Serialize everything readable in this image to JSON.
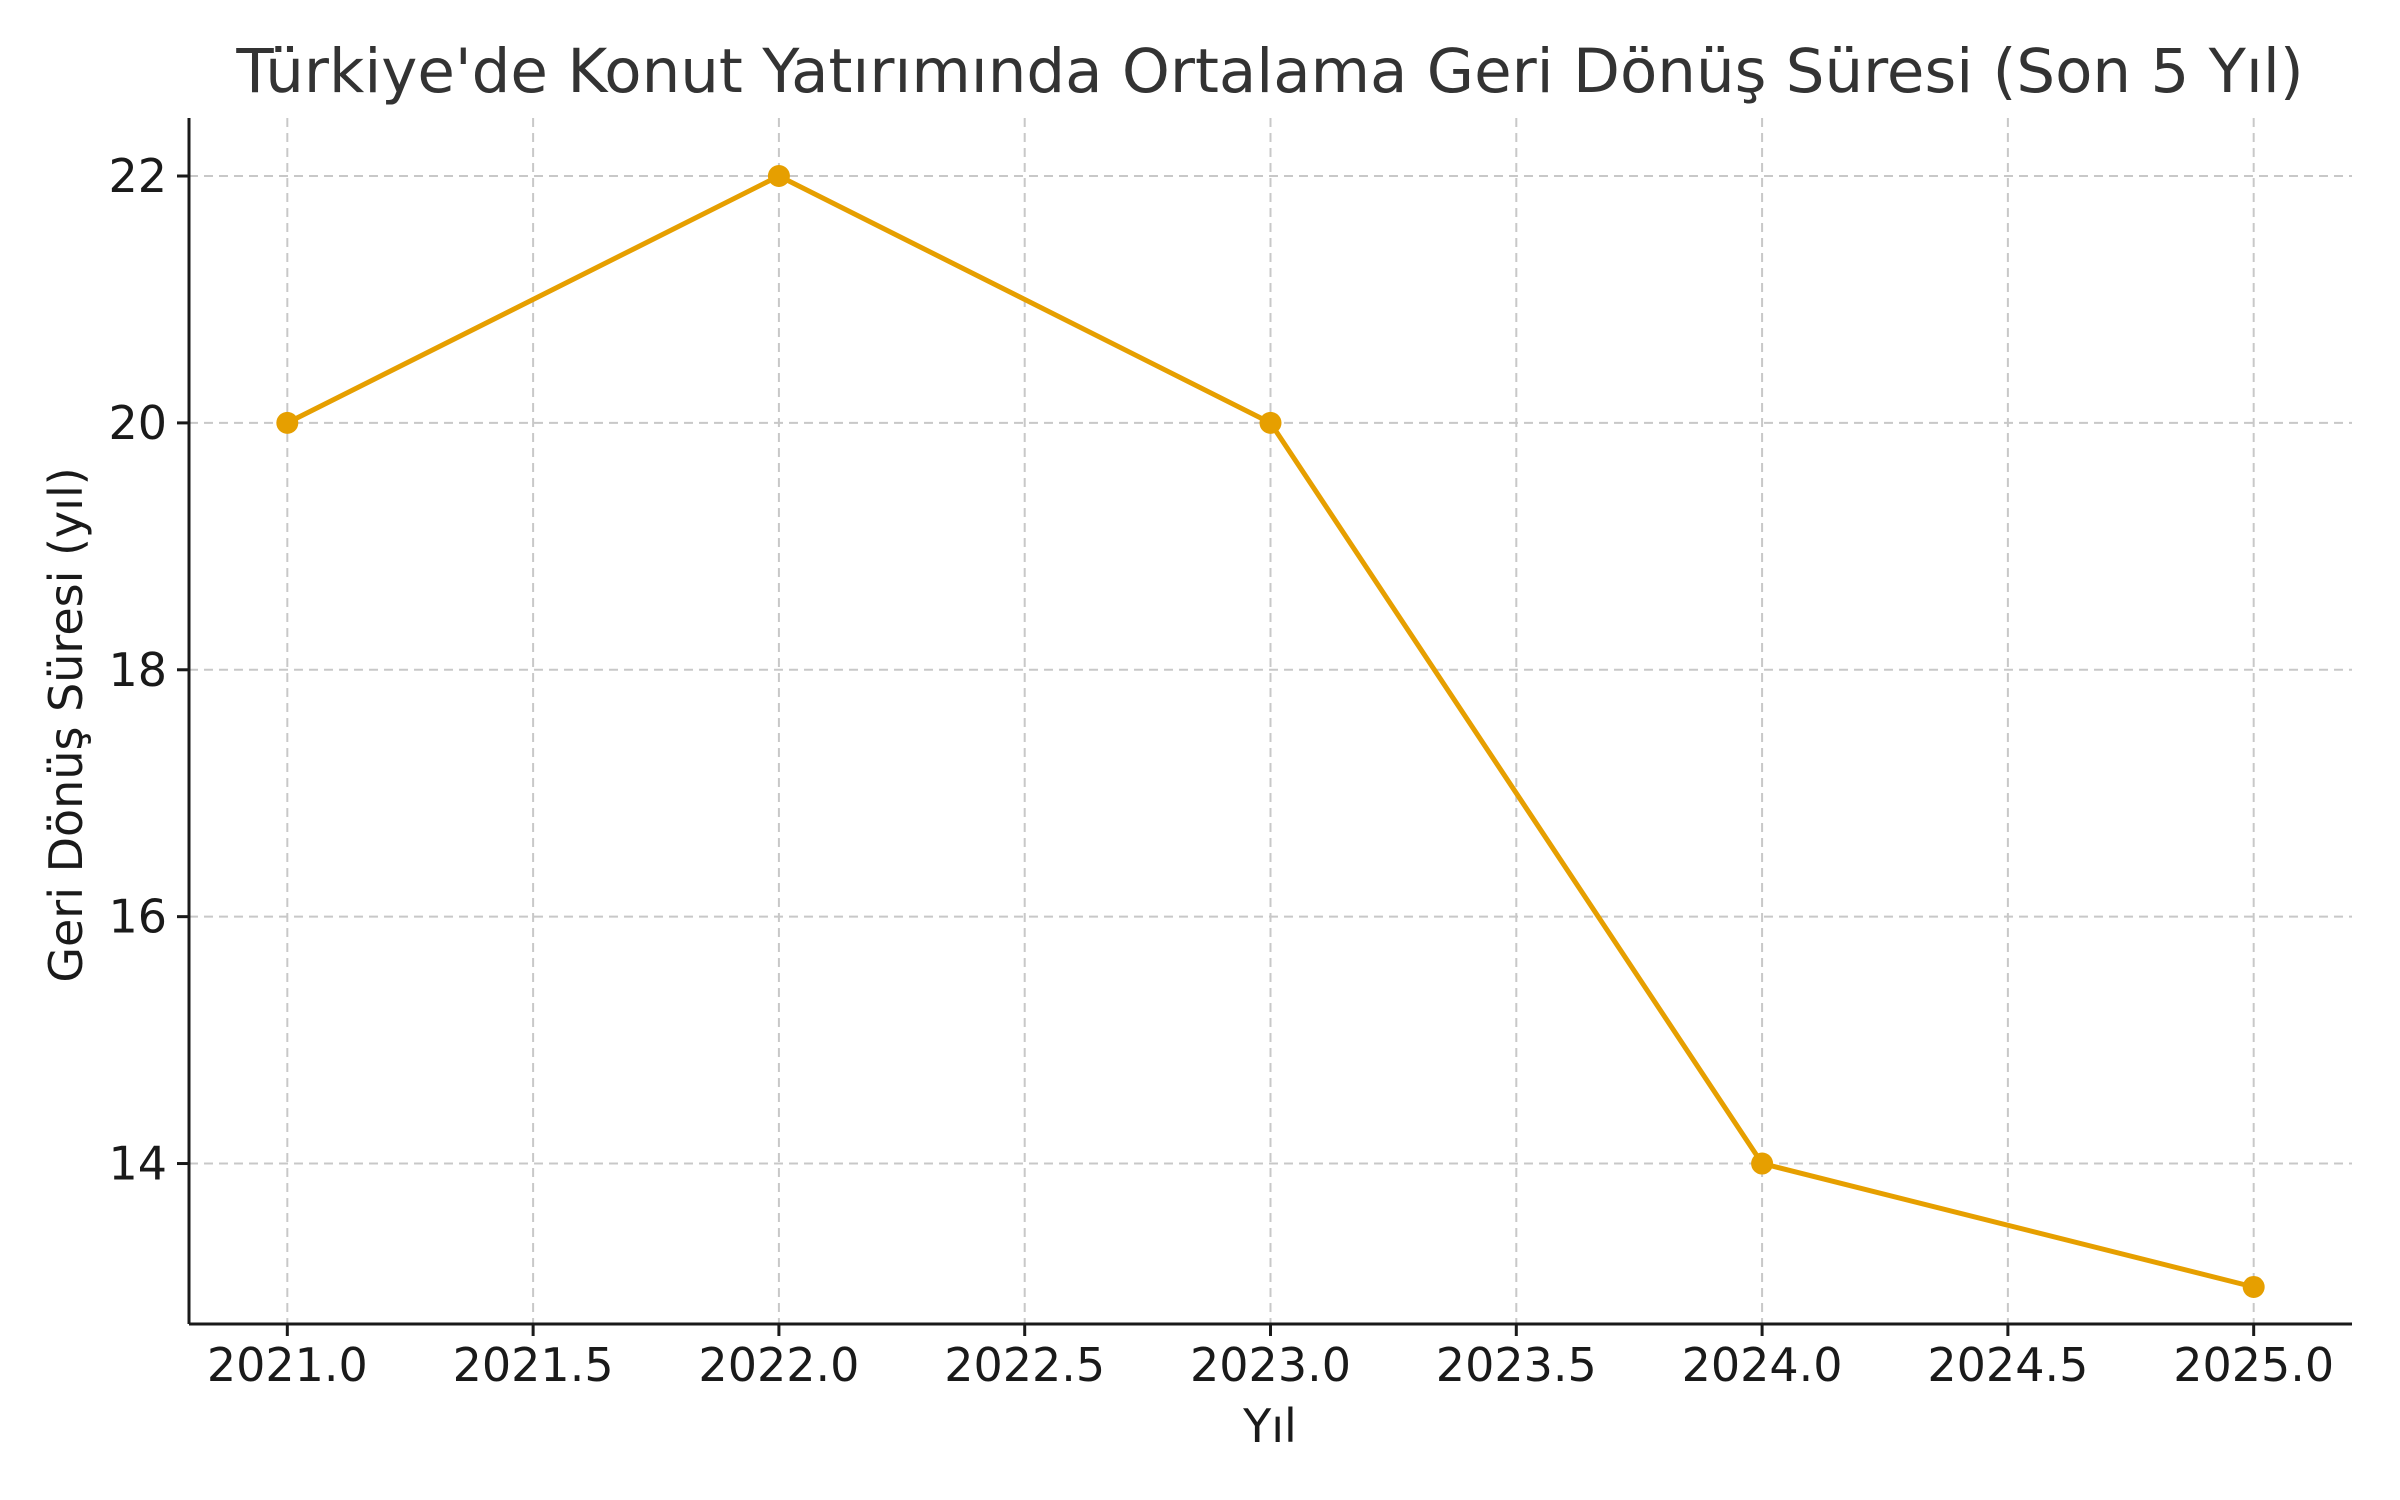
{
  "chart_data": {
    "type": "line",
    "title": "Türkiye'de Konut Yatırımında Ortalama Geri Dönüş Süresi (Son 5 Yıl)",
    "xlabel": "Yıl",
    "ylabel": "Geri Dönüş Süresi (yıl)",
    "xlim": [
      2020.8,
      2025.2
    ],
    "ylim": [
      12.7,
      22.47
    ],
    "xticks": [
      2021.0,
      2021.5,
      2022.0,
      2022.5,
      2023.0,
      2023.5,
      2024.0,
      2024.5,
      2025.0
    ],
    "xtick_labels": [
      "2021.0",
      "2021.5",
      "2022.0",
      "2022.5",
      "2023.0",
      "2023.5",
      "2024.0",
      "2024.5",
      "2025.0"
    ],
    "yticks": [
      14,
      16,
      18,
      20,
      22
    ],
    "ytick_labels": [
      "14",
      "16",
      "18",
      "20",
      "22"
    ],
    "grid": true,
    "series": [
      {
        "x": [
          2021,
          2022,
          2023,
          2024,
          2025
        ],
        "values": [
          20,
          22,
          20,
          14,
          13
        ],
        "color": "#E69F00",
        "marker": "circle"
      }
    ]
  }
}
